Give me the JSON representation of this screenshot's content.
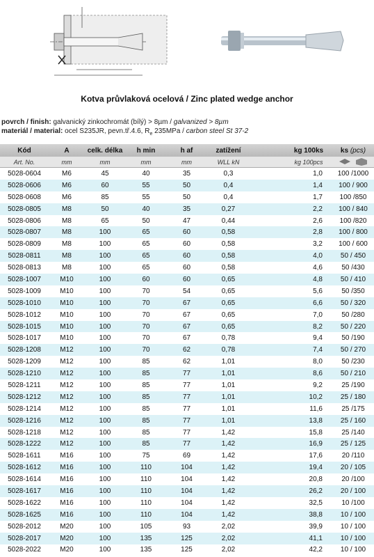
{
  "header": {
    "title": "Kotva průvlaková ocelová / Zinc plated wedge anchor"
  },
  "spec": {
    "finish_label": "povrch / finish:",
    "finish_value": "galvanický zinkochromát (bílý) > 8µm /",
    "finish_en": "galvanized > 8µm",
    "material_label": "materiál / material:",
    "material_value": "ocel S235JR, pevn.tř.4.6, R",
    "material_sub": "e",
    "material_value2": "235MPa /",
    "material_en": "carbon steel St 37-2"
  },
  "table": {
    "header": [
      "Kód",
      "A",
      "celk. délka",
      "h min",
      "h af",
      "zatížení",
      "",
      "kg 100ks",
      "ks"
    ],
    "header_ks_en": "(pcs)",
    "subheader": [
      "Art. No.",
      "mm",
      "mm",
      "mm",
      "mm",
      "WLL kN",
      "",
      "kg 100pcs",
      ""
    ],
    "rows": [
      [
        "5028-0604",
        "M6",
        "45",
        "40",
        "35",
        "0,3",
        "1,0",
        "100 /1000"
      ],
      [
        "5028-0606",
        "M6",
        "60",
        "55",
        "50",
        "0,4",
        "1,4",
        "100 / 900"
      ],
      [
        "5028-0608",
        "M6",
        "85",
        "55",
        "50",
        "0,4",
        "1,7",
        "100 /850"
      ],
      [
        "5028-0805",
        "M8",
        "50",
        "40",
        "35",
        "0,27",
        "2,2",
        "100 / 840"
      ],
      [
        "5028-0806",
        "M8",
        "65",
        "50",
        "47",
        "0,44",
        "2,6",
        "100 /820"
      ],
      [
        "5028-0807",
        "M8",
        "100",
        "65",
        "60",
        "0,58",
        "2,8",
        "100 / 800"
      ],
      [
        "5028-0809",
        "M8",
        "100",
        "65",
        "60",
        "0,58",
        "3,2",
        "100 / 600"
      ],
      [
        "5028-0811",
        "M8",
        "100",
        "65",
        "60",
        "0,58",
        "4,0",
        "50 / 450"
      ],
      [
        "5028-0813",
        "M8",
        "100",
        "65",
        "60",
        "0,58",
        "4,6",
        "50 /430"
      ],
      [
        "5028-1007",
        "M10",
        "100",
        "60",
        "60",
        "0,65",
        "4,8",
        "50 / 410"
      ],
      [
        "5028-1009",
        "M10",
        "100",
        "70",
        "54",
        "0,65",
        "5,6",
        "50 /350"
      ],
      [
        "5028-1010",
        "M10",
        "100",
        "70",
        "67",
        "0,65",
        "6,6",
        "50 / 320"
      ],
      [
        "5028-1012",
        "M10",
        "100",
        "70",
        "67",
        "0,65",
        "7,0",
        "50 /280"
      ],
      [
        "5028-1015",
        "M10",
        "100",
        "70",
        "67",
        "0,65",
        "8,2",
        "50 / 220"
      ],
      [
        "5028-1017",
        "M10",
        "100",
        "70",
        "67",
        "0,78",
        "9,4",
        "50 /190"
      ],
      [
        "5028-1208",
        "M12",
        "100",
        "70",
        "62",
        "0,78",
        "7,4",
        "50 / 270"
      ],
      [
        "5028-1209",
        "M12",
        "100",
        "85",
        "62",
        "1,01",
        "8,0",
        "50 /230"
      ],
      [
        "5028-1210",
        "M12",
        "100",
        "85",
        "77",
        "1,01",
        "8,6",
        "50 / 210"
      ],
      [
        "5028-1211",
        "M12",
        "100",
        "85",
        "77",
        "1,01",
        "9,2",
        "25 /190"
      ],
      [
        "5028-1212",
        "M12",
        "100",
        "85",
        "77",
        "1,01",
        "10,2",
        "25 / 180"
      ],
      [
        "5028-1214",
        "M12",
        "100",
        "85",
        "77",
        "1,01",
        "11,6",
        "25 /175"
      ],
      [
        "5028-1216",
        "M12",
        "100",
        "85",
        "77",
        "1,01",
        "13,8",
        "25 / 160"
      ],
      [
        "5028-1218",
        "M12",
        "100",
        "85",
        "77",
        "1,42",
        "15,8",
        "25 /140"
      ],
      [
        "5028-1222",
        "M12",
        "100",
        "85",
        "77",
        "1,42",
        "16,9",
        "25 / 125"
      ],
      [
        "5028-1611",
        "M16",
        "100",
        "75",
        "69",
        "1,42",
        "17,6",
        "20 /110"
      ],
      [
        "5028-1612",
        "M16",
        "100",
        "110",
        "104",
        "1,42",
        "19,4",
        "20 / 105"
      ],
      [
        "5028-1614",
        "M16",
        "100",
        "110",
        "104",
        "1,42",
        "20,8",
        "20 /100"
      ],
      [
        "5028-1617",
        "M16",
        "100",
        "110",
        "104",
        "1,42",
        "26,2",
        "20 / 100"
      ],
      [
        "5028-1622",
        "M16",
        "100",
        "110",
        "104",
        "1,42",
        "32,5",
        "10 /100"
      ],
      [
        "5028-1625",
        "M16",
        "100",
        "110",
        "104",
        "1,42",
        "38,8",
        "10 / 100"
      ],
      [
        "5028-2012",
        "M20",
        "100",
        "105",
        "93",
        "2,02",
        "39,9",
        "10 / 100"
      ],
      [
        "5028-2017",
        "M20",
        "100",
        "135",
        "125",
        "2,02",
        "41,1",
        "10 / 100"
      ],
      [
        "5028-2022",
        "M20",
        "100",
        "135",
        "125",
        "2,02",
        "42,2",
        "10 / 100"
      ]
    ]
  }
}
